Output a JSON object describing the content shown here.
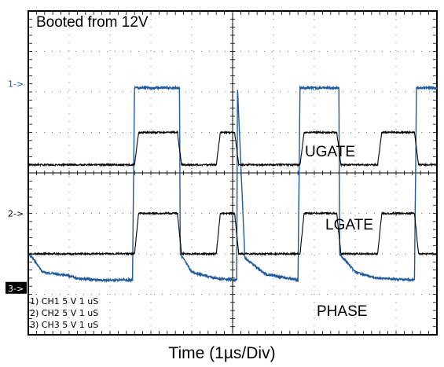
{
  "chart_data": {
    "type": "line",
    "title": "Booted from 12V",
    "xlabel": "Time (1µs/Div)",
    "ylabel": "",
    "grid": true,
    "divisions": {
      "x": 10,
      "y": 8
    },
    "time_per_div_us": 1,
    "xlim_us": [
      0,
      10
    ],
    "channel_markers": [
      {
        "label": "1->",
        "style": "outline",
        "level_div": 1.8
      },
      {
        "label": "2->",
        "style": "outline",
        "level_div": 5.0
      },
      {
        "label": "3->",
        "style": "filled",
        "level_div": 6.85
      }
    ],
    "channel_settings": [
      "1) CH1  5  V    1 uS",
      "2) CH2  5  V    1 uS",
      "3) CH3  5  V    1 uS"
    ],
    "series": [
      {
        "name": "UGATE",
        "color": "#1f5a9a",
        "low_div": 1.9,
        "high_div": 6.65,
        "x_us": [
          0,
          0.1,
          0.35,
          1.0,
          1.2,
          1.7,
          2.55,
          2.6,
          3.7,
          3.72,
          4.0,
          4.55,
          5.1,
          5.12,
          5.3,
          5.8,
          6.6,
          6.65,
          7.6,
          7.62,
          8.0,
          8.5,
          9.45,
          9.5,
          10.0
        ],
        "y_div": [
          6.0,
          6.1,
          6.45,
          6.55,
          6.6,
          6.65,
          6.65,
          1.9,
          1.9,
          6.0,
          6.45,
          6.6,
          6.65,
          1.9,
          6.1,
          6.5,
          6.65,
          1.9,
          1.9,
          6.0,
          6.45,
          6.6,
          6.65,
          1.9,
          1.9
        ]
      },
      {
        "name": "LGATE",
        "color": "#000000",
        "low_div": 5.0,
        "high_div": 6.0,
        "x_us": [
          0,
          2.6,
          2.7,
          3.65,
          3.75,
          4.6,
          4.7,
          5.05,
          5.15,
          6.65,
          6.75,
          7.55,
          7.65,
          8.55,
          8.65,
          9.45,
          9.55,
          10.0
        ],
        "y_div": [
          6.0,
          6.0,
          5.0,
          5.0,
          6.0,
          6.0,
          5.0,
          5.0,
          6.0,
          6.0,
          5.0,
          5.0,
          6.0,
          6.0,
          5.0,
          5.0,
          6.0,
          6.0
        ],
        "comment": "levels in divisions from top of screen"
      },
      {
        "name": "PHASE",
        "color": "#000000",
        "x_us": [
          0,
          2.6,
          2.7,
          3.65,
          3.75,
          4.6,
          4.7,
          5.05,
          5.15,
          6.65,
          6.75,
          7.55,
          7.65,
          8.55,
          8.65,
          9.45,
          9.55,
          10.0
        ],
        "y_div": [
          3.8,
          3.8,
          3.0,
          3.0,
          3.8,
          3.8,
          3.0,
          3.0,
          3.8,
          3.8,
          3.0,
          3.0,
          3.8,
          3.8,
          3.0,
          3.0,
          3.8,
          3.8
        ]
      }
    ]
  }
}
